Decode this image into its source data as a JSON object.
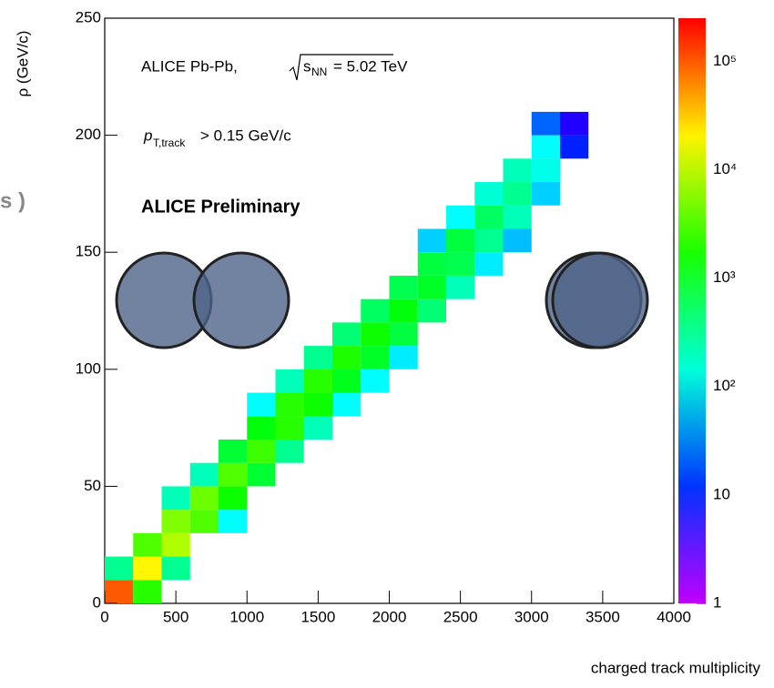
{
  "chart_data": {
    "type": "heatmap2d",
    "side_text": "s )",
    "ylabel": "ρ (GeV/c)",
    "xlabel": "charged track multiplicity",
    "annotation_1": {
      "prefix": "ALICE Pb-Pb,",
      "sqrt_s": "s",
      "sqrt_sub": "NN",
      "suffix": "= 5.02 TeV"
    },
    "annotation_2": {
      "p": "p",
      "sub": "T,track",
      "suffix": "> 0.15 GeV/c"
    },
    "annotation_3": "ALICE Preliminary",
    "xlim": [
      0,
      4000
    ],
    "xticks": [
      0,
      500,
      1000,
      1500,
      2000,
      2500,
      3000,
      3500,
      4000
    ],
    "ylim": [
      0,
      250
    ],
    "yticks": [
      0,
      50,
      100,
      150,
      200,
      250
    ],
    "zlim": [
      1,
      250000
    ],
    "zlog": true,
    "zticks": [
      1,
      10,
      {
        "value": 100,
        "label": "10²"
      },
      {
        "value": 1000,
        "label": "10³"
      },
      {
        "value": 10000,
        "label": "10⁴"
      },
      {
        "value": 100000,
        "label": "10⁵"
      }
    ],
    "x": [
      100,
      100,
      300,
      300,
      300,
      500,
      500,
      500,
      500,
      700,
      700,
      700,
      900,
      900,
      900,
      900,
      1100,
      1100,
      1100,
      1100,
      1300,
      1300,
      1300,
      1300,
      1500,
      1500,
      1500,
      1500,
      1700,
      1700,
      1700,
      1700,
      1900,
      1900,
      1900,
      1900,
      2100,
      2100,
      2100,
      2100,
      2300,
      2300,
      2300,
      2300,
      2500,
      2500,
      2500,
      2500,
      2700,
      2700,
      2700,
      2700,
      2900,
      2900,
      2900,
      2900,
      3100,
      3100,
      3100,
      3100,
      3300,
      3300
    ],
    "y": [
      5,
      15,
      5,
      15,
      25,
      15,
      25,
      35,
      45,
      35,
      45,
      55,
      35,
      45,
      55,
      65,
      55,
      65,
      75,
      85,
      65,
      75,
      85,
      95,
      75,
      85,
      95,
      105,
      85,
      95,
      105,
      115,
      95,
      105,
      115,
      125,
      105,
      115,
      125,
      135,
      125,
      135,
      145,
      155,
      135,
      145,
      155,
      165,
      145,
      155,
      165,
      175,
      155,
      165,
      175,
      185,
      175,
      185,
      195,
      205,
      195,
      205
    ],
    "values": [
      100000,
      300,
      2000,
      20000,
      3000,
      300,
      8000,
      5000,
      200,
      3000,
      4000,
      200,
      100,
      1500,
      3000,
      800,
      800,
      2500,
      1200,
      100,
      300,
      2000,
      2000,
      200,
      200,
      1500,
      2000,
      300,
      100,
      1000,
      1800,
      400,
      100,
      900,
      1500,
      500,
      80,
      700,
      1200,
      600,
      400,
      900,
      700,
      60,
      200,
      600,
      700,
      100,
      80,
      300,
      500,
      150,
      50,
      200,
      300,
      200,
      60,
      120,
      100,
      20,
      10,
      5
    ]
  }
}
